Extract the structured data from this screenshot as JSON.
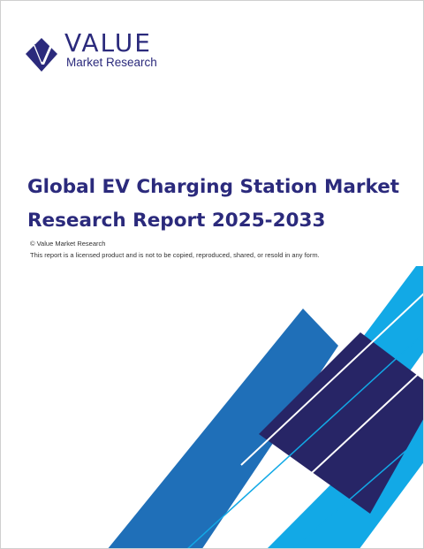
{
  "logo": {
    "word": "VALUE",
    "subtitle": "Market Research",
    "icon": "diamond-v-icon"
  },
  "title": {
    "line1": "Global EV Charging Station Market",
    "line2": "Research Report 2025-2033"
  },
  "copyright": "© Value Market Research",
  "license": "This report is a licensed product and is not to be copied, reproduced, shared, or resold in any form.",
  "colors": {
    "navy": "#2b2a7c",
    "blue": "#1f6fb8",
    "cyan": "#12a9e6",
    "dark_navy": "#272566"
  },
  "decoration": {
    "name": "diagonal-stripes-graphic"
  }
}
